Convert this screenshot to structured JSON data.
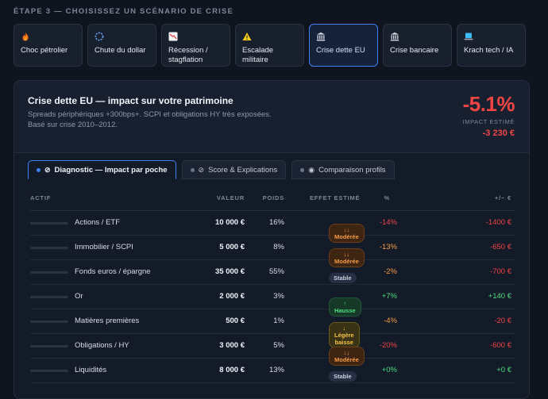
{
  "step_title": "ÉTAPE 3 — CHOISISSEZ UN SCÉNARIO DE CRISE",
  "scenarios": [
    {
      "label": "Choc pétrolier",
      "icon": "flame-icon"
    },
    {
      "label": "Chute du dollar",
      "icon": "dollar-cycle-icon"
    },
    {
      "label": "Récession / stagflation",
      "icon": "chart-down-icon"
    },
    {
      "label": "Escalade militaire",
      "icon": "warning-icon"
    },
    {
      "label": "Crise dette EU",
      "icon": "bank-icon",
      "active": true
    },
    {
      "label": "Crise bancaire",
      "icon": "bank-icon"
    },
    {
      "label": "Krach tech / IA",
      "icon": "laptop-icon"
    }
  ],
  "impact": {
    "title": "Crise dette EU — impact sur votre patrimoine",
    "subtitle": "Spreads périphériques +300bps+. SCPI et obligations HY très exposées. Basé sur crise 2010–2012.",
    "percent": "-5.1%",
    "percent_label": "IMPACT ESTIMÉ",
    "amount": "-3 230 €"
  },
  "tabs": [
    {
      "label": "Diagnostic — Impact par poche",
      "icon": "target-icon",
      "active": true
    },
    {
      "label": "Score & Explications",
      "icon": "target-icon"
    },
    {
      "label": "Comparaison profils",
      "icon": "eye-icon"
    }
  ],
  "table": {
    "headers": {
      "asset": "ACTIF",
      "value": "VALEUR",
      "weight": "POIDS",
      "effect": "EFFET ESTIMÉ",
      "pct": "%",
      "eur": "+/− €"
    },
    "rows": [
      {
        "asset": "Actions / ETF",
        "value": "10 000 €",
        "weight": "16%",
        "effect": "↓↓ Modérée",
        "effect_type": "mod",
        "pct": "-14%",
        "eur": "-1400 €"
      },
      {
        "asset": "Immobilier / SCPI",
        "value": "5 000 €",
        "weight": "8%",
        "effect": "↓↓ Modérée",
        "effect_type": "mod",
        "pct": "-13%",
        "eur": "-650 €"
      },
      {
        "asset": "Fonds euros / épargne",
        "value": "35 000 €",
        "weight": "55%",
        "effect": "Stable",
        "effect_type": "stable",
        "pct": "-2%",
        "eur": "-700 €"
      },
      {
        "asset": "Or",
        "value": "2 000 €",
        "weight": "3%",
        "effect": "↑ Hausse",
        "effect_type": "up",
        "pct": "+7%",
        "eur": "+140 €"
      },
      {
        "asset": "Matières premières",
        "value": "500 €",
        "weight": "1%",
        "effect": "↓ Légère baisse",
        "effect_type": "light",
        "pct": "-4%",
        "eur": "-20 €"
      },
      {
        "asset": "Obligations / HY",
        "value": "3 000 €",
        "weight": "5%",
        "effect": "↓↓ Modérée",
        "effect_type": "mod",
        "pct": "-20%",
        "eur": "-600 €"
      },
      {
        "asset": "Liquidités",
        "value": "8 000 €",
        "weight": "13%",
        "effect": "Stable",
        "effect_type": "stable",
        "pct": "+0%",
        "eur": "+0 €"
      }
    ]
  },
  "colors": {
    "accent": "#3b82f6",
    "negative": "#f04545",
    "positive": "#4ade80",
    "moderate": "#f59a42"
  }
}
